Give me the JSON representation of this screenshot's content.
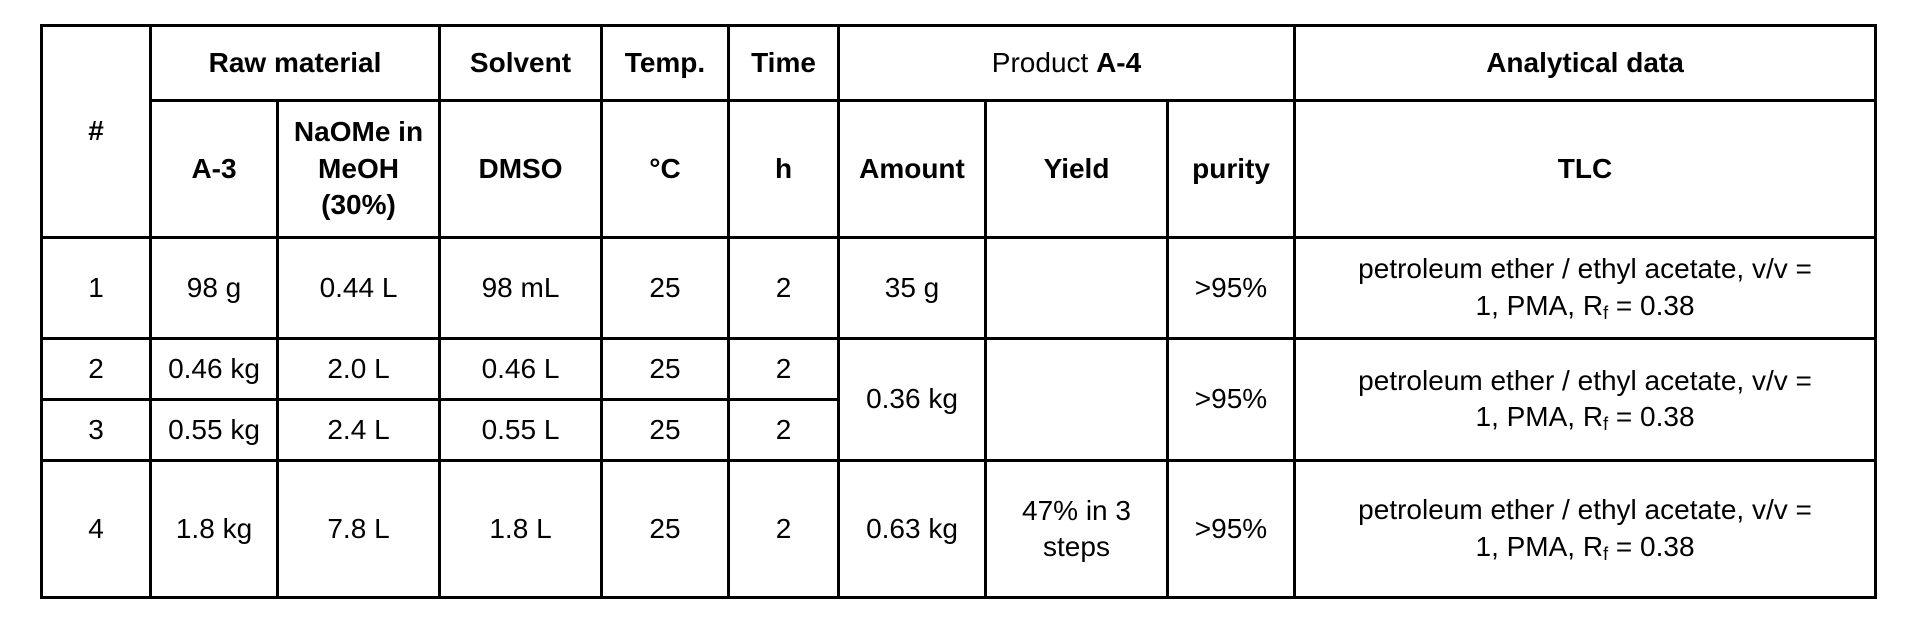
{
  "table": {
    "header": {
      "num": "#",
      "raw_material": "Raw material",
      "solvent": "Solvent",
      "temp": "Temp.",
      "time": "Time",
      "product_prefix": "Product ",
      "product_code": "A-4",
      "analytical": "Analytical data",
      "sub": {
        "a3": "A-3",
        "naome_line1": "NaOMe in",
        "naome_line2": "MeOH",
        "naome_line3": "(30%)",
        "dmso": "DMSO",
        "temp_unit": "°C",
        "time_unit": "h",
        "amount": "Amount",
        "yield": "Yield",
        "purity": "purity",
        "tlc": "TLC"
      }
    },
    "rows": [
      {
        "num": "1",
        "a3": "98 g",
        "naome": "0.44 L",
        "dmso": "98 mL",
        "temp": "25",
        "time": "2"
      },
      {
        "num": "2",
        "a3": "0.46 kg",
        "naome": "2.0 L",
        "dmso": "0.46 L",
        "temp": "25",
        "time": "2"
      },
      {
        "num": "3",
        "a3": "0.55 kg",
        "naome": "2.4 L",
        "dmso": "0.55 L",
        "temp": "25",
        "time": "2"
      },
      {
        "num": "4",
        "a3": "1.8 kg",
        "naome": "7.8 L",
        "dmso": "1.8 L",
        "temp": "25",
        "time": "2"
      }
    ],
    "products": [
      {
        "amount": "35 g",
        "yield": "",
        "purity": ">95%"
      },
      {
        "amount": "0.36 kg",
        "yield": "",
        "purity": ">95%"
      },
      {
        "amount": "0.63 kg",
        "yield_line1": "47% in 3",
        "yield_line2": "steps",
        "purity": ">95%"
      }
    ],
    "tlc": {
      "line1": "petroleum ether / ethyl acetate, v/v =",
      "line2_prefix": "1, PMA, R",
      "line2_sub": "f",
      "line2_suffix": " = 0.38"
    }
  }
}
